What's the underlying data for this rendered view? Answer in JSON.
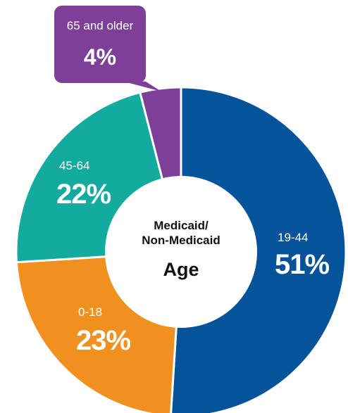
{
  "chart_data": {
    "type": "pie",
    "variant": "donut",
    "title": "Age",
    "center_lines": [
      "Medicaid/",
      "Non-Medicaid",
      "Age"
    ],
    "slices": [
      {
        "label": "19-44",
        "value": 51,
        "display": "51%",
        "color": "#05539a"
      },
      {
        "label": "0-18",
        "value": 23,
        "display": "23%",
        "color": "#ef901f"
      },
      {
        "label": "45-64",
        "value": 22,
        "display": "22%",
        "color": "#12ab9d"
      },
      {
        "label": "65 and older",
        "value": 4,
        "display": "4%",
        "color": "#7e3f99"
      }
    ]
  }
}
